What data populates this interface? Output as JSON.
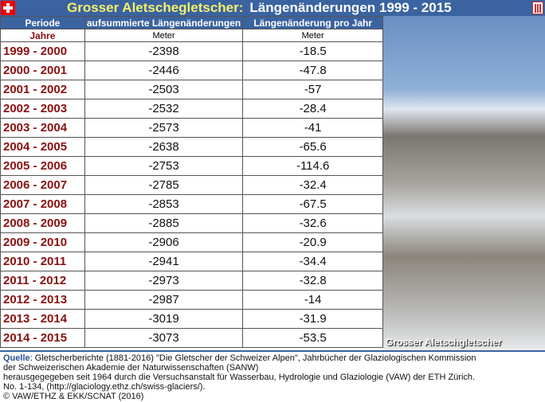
{
  "title": {
    "part1": "Grosser Aletschegletscher:",
    "part2": "Längenänderungen 1999 - 2015"
  },
  "icons": {
    "flag": "swiss-flag-icon",
    "menu": "menu-icon"
  },
  "colors": {
    "header_bg": "#3a63a0",
    "title_highlight": "#f5f06a",
    "period_text": "#8b1010"
  },
  "table": {
    "headers": [
      "Periode",
      "aufsummierte Längenänderungen",
      "Längenänderung  pro Jahr"
    ],
    "units": [
      "Jahre",
      "Meter",
      "Meter"
    ],
    "rows": [
      [
        "1999 - 2000",
        "-2398",
        "-18.5"
      ],
      [
        "2000 - 2001",
        "-2446",
        "-47.8"
      ],
      [
        "2001 - 2002",
        "-2503",
        "-57"
      ],
      [
        "2002 - 2003",
        "-2532",
        "-28.4"
      ],
      [
        "2003 - 2004",
        "-2573",
        "-41"
      ],
      [
        "2004 - 2005",
        "-2638",
        "-65.6"
      ],
      [
        "2005 - 2006",
        "-2753",
        "-114.6"
      ],
      [
        "2006 - 2007",
        "-2785",
        "-32.4"
      ],
      [
        "2007 - 2008",
        "-2853",
        "-67.5"
      ],
      [
        "2008 - 2009",
        "-2885",
        "-32.6"
      ],
      [
        "2009 - 2010",
        "-2906",
        "-20.9"
      ],
      [
        "2010 - 2011",
        "-2941",
        "-34.4"
      ],
      [
        "2011 - 2012",
        "-2973",
        "-32.8"
      ],
      [
        "2012 - 2013",
        "-2987",
        "-14"
      ],
      [
        "2013 - 2014",
        "-3019",
        "-31.9"
      ],
      [
        "2014 - 2015",
        "-3073",
        "-53.5"
      ]
    ]
  },
  "photo": {
    "label": "Grosser Aletschgletscher"
  },
  "footer": {
    "label": "Quelle",
    "line1": ": Gletscherberichte (1881-2016) \"Die Gletscher der Schweizer Alpen\", Jahrbücher der Glaziologischen Kommission",
    "line2": "der Schweizerischen Akademie der Naturwissenschaften (SANW)",
    "line3": "herausgegegeben seit 1964 durch die Versuchsanstalt für Wasserbau, Hydrologie und Glaziologie (VAW) der ETH Zürich.",
    "line4": "No. 1-134, (http://glaciology.ethz.ch/swiss-glaciers/).",
    "line5": "© VAW/ETHZ & EKK/SCNAT (2016)"
  }
}
